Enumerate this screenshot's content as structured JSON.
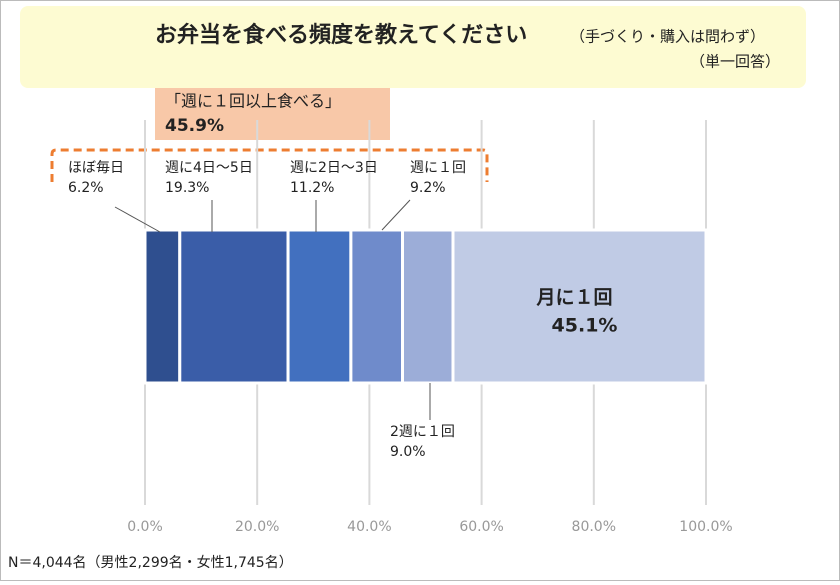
{
  "chart_data": {
    "type": "stacked-bar",
    "orientation": "horizontal",
    "title": "お弁当を食べる頻度を教えてください",
    "subtitle": "（手づくり・購入は問わず）",
    "note": "（単一回答）",
    "annotation": {
      "text": "「週に１回以上食べる」",
      "value_label": "45.9%"
    },
    "footnote": "N＝4,044名（男性2,299名・女性1,745名）",
    "categories": [
      null
    ],
    "series": [
      {
        "name": "ほぼ毎日",
        "color": "#2f4f8f",
        "values": [
          6.2
        ],
        "value_labels": [
          "6.2%"
        ]
      },
      {
        "name": "週に4日～5日",
        "color": "#3a5da8",
        "values": [
          19.3
        ],
        "value_labels": [
          "19.3%"
        ]
      },
      {
        "name": "週に2日～3日",
        "color": "#4270bf",
        "values": [
          11.2
        ],
        "value_labels": [
          "11.2%"
        ]
      },
      {
        "name": "週に１回",
        "color": "#6f8bcb",
        "values": [
          9.2
        ],
        "value_labels": [
          "9.2%"
        ]
      },
      {
        "name": "2週に１回",
        "color": "#9cadd8",
        "values": [
          9.0
        ],
        "value_labels": [
          "9.0%"
        ]
      },
      {
        "name": "月に１回",
        "color": "#c0cbe5",
        "values": [
          45.1
        ],
        "value_labels": [
          "45.1%"
        ]
      }
    ],
    "xlim": [
      0,
      100
    ],
    "xticks": [
      {
        "value": 0,
        "label": "0.0%"
      },
      {
        "value": 20,
        "label": "20.0%"
      },
      {
        "value": 40,
        "label": "40.0%"
      },
      {
        "value": 60,
        "label": "60.0%"
      },
      {
        "value": 80,
        "label": "80.0%"
      },
      {
        "value": 100,
        "label": "100.0%"
      }
    ],
    "grid": true
  }
}
